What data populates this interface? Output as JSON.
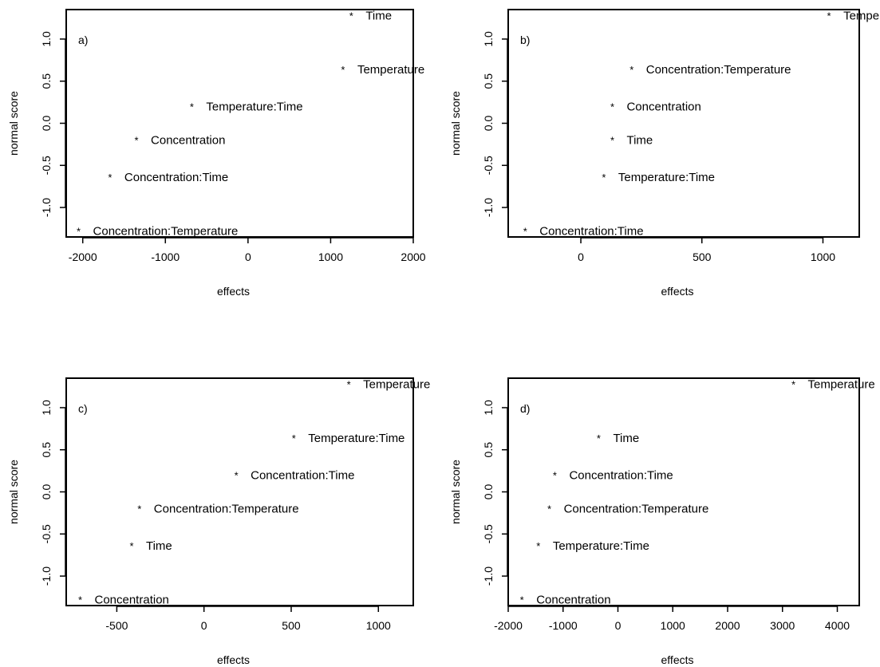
{
  "chart_data": [
    {
      "type": "scatter",
      "panel_label": "a)",
      "xlabel": "effects",
      "ylabel": "normal score",
      "xlim": [
        -2200,
        2000
      ],
      "ylim": [
        -1.35,
        1.35
      ],
      "xticks": [
        -2000,
        -1000,
        0,
        1000,
        2000
      ],
      "xtick_labels": [
        "-2000",
        "-1000",
        "0",
        "1000",
        "2000"
      ],
      "yticks": [
        -1.0,
        -0.5,
        0.0,
        0.5,
        1.0
      ],
      "ytick_labels": [
        "-1.0",
        "-0.5",
        "0.0",
        "0.5",
        "1.0"
      ],
      "marker": "*",
      "points": [
        {
          "label": "Time",
          "x": 1250,
          "y": 1.28
        },
        {
          "label": "Temperature",
          "x": 1150,
          "y": 0.64
        },
        {
          "label": "Temperature:Time",
          "x": -680,
          "y": 0.2
        },
        {
          "label": "Concentration",
          "x": -1350,
          "y": -0.2
        },
        {
          "label": "Concentration:Time",
          "x": -1670,
          "y": -0.64
        },
        {
          "label": "Concentration:Temperature",
          "x": -2050,
          "y": -1.28
        }
      ]
    },
    {
      "type": "scatter",
      "panel_label": "b)",
      "xlabel": "effects",
      "ylabel": "normal score",
      "xlim": [
        -300,
        1150
      ],
      "ylim": [
        -1.35,
        1.35
      ],
      "xticks": [
        0,
        500,
        1000
      ],
      "xtick_labels": [
        "0",
        "500",
        "1000"
      ],
      "yticks": [
        -1.0,
        -0.5,
        0.0,
        0.5,
        1.0
      ],
      "ytick_labels": [
        "-1.0",
        "-0.5",
        "0.0",
        "0.5",
        "1.0"
      ],
      "marker": "*",
      "points": [
        {
          "label": "Temperature",
          "x": 1025,
          "y": 1.28
        },
        {
          "label": "Concentration:Temperature",
          "x": 210,
          "y": 0.64
        },
        {
          "label": "Concentration",
          "x": 130,
          "y": 0.2
        },
        {
          "label": "Time",
          "x": 130,
          "y": -0.2
        },
        {
          "label": "Temperature:Time",
          "x": 95,
          "y": -0.64
        },
        {
          "label": "Concentration:Time",
          "x": -230,
          "y": -1.28
        }
      ]
    },
    {
      "type": "scatter",
      "panel_label": "c)",
      "xlabel": "effects",
      "ylabel": "normal score",
      "xlim": [
        -790,
        1200
      ],
      "ylim": [
        -1.35,
        1.35
      ],
      "xticks": [
        -500,
        0,
        500,
        1000
      ],
      "xtick_labels": [
        "-500",
        "0",
        "500",
        "1000"
      ],
      "yticks": [
        -1.0,
        -0.5,
        0.0,
        0.5,
        1.0
      ],
      "ytick_labels": [
        "-1.0",
        "-0.5",
        "0.0",
        "0.5",
        "1.0"
      ],
      "marker": "*",
      "points": [
        {
          "label": "Temperature",
          "x": 830,
          "y": 1.28
        },
        {
          "label": "Temperature:Time",
          "x": 515,
          "y": 0.64
        },
        {
          "label": "Concentration:Time",
          "x": 185,
          "y": 0.2
        },
        {
          "label": "Concentration:Temperature",
          "x": -370,
          "y": -0.2
        },
        {
          "label": "Time",
          "x": -415,
          "y": -0.64
        },
        {
          "label": "Concentration",
          "x": -710,
          "y": -1.28
        }
      ]
    },
    {
      "type": "scatter",
      "panel_label": "d)",
      "xlabel": "effects",
      "ylabel": "normal score",
      "xlim": [
        -2000,
        4400
      ],
      "ylim": [
        -1.35,
        1.35
      ],
      "xticks": [
        -2000,
        -1000,
        0,
        1000,
        2000,
        3000,
        4000
      ],
      "xtick_labels": [
        "-2000",
        "-1000",
        "0",
        "1000",
        "2000",
        "3000",
        "4000"
      ],
      "yticks": [
        -1.0,
        -0.5,
        0.0,
        0.5,
        1.0
      ],
      "ytick_labels": [
        "-1.0",
        "-0.5",
        "0.0",
        "0.5",
        "1.0"
      ],
      "marker": "*",
      "points": [
        {
          "label": "Temperature",
          "x": 3200,
          "y": 1.28
        },
        {
          "label": "Time",
          "x": -350,
          "y": 0.64
        },
        {
          "label": "Concentration:Time",
          "x": -1150,
          "y": 0.2
        },
        {
          "label": "Concentration:Temperature",
          "x": -1250,
          "y": -0.2
        },
        {
          "label": "Temperature:Time",
          "x": -1450,
          "y": -0.64
        },
        {
          "label": "Concentration",
          "x": -1750,
          "y": -1.28
        }
      ]
    }
  ]
}
